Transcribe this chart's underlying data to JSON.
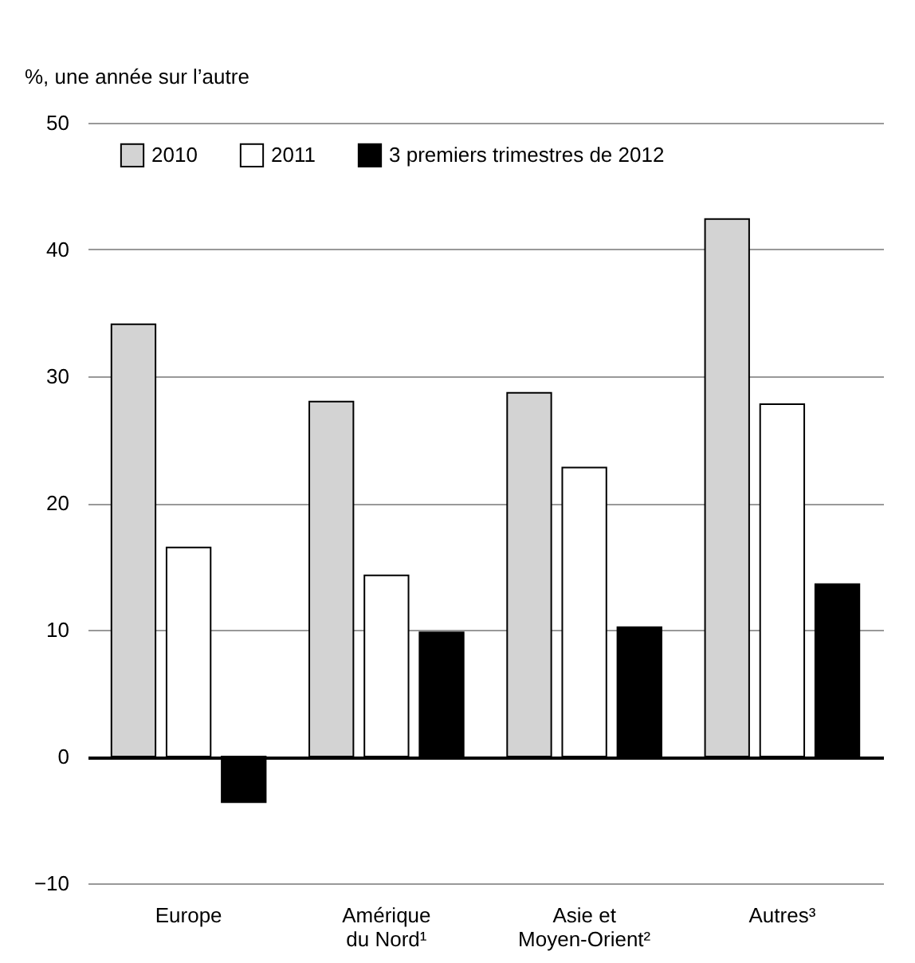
{
  "chart_data": {
    "type": "bar",
    "ylabel": "%, une année sur l’autre",
    "categories": [
      "Europe",
      "Amérique\ndu Nord¹",
      "Asie et\nMoyen-Orient²",
      "Autres³"
    ],
    "series": [
      {
        "name": "2010",
        "color": "#d3d3d3",
        "values": [
          34.1,
          28.0,
          28.7,
          42.4
        ]
      },
      {
        "name": "2011",
        "color": "#ffffff",
        "values": [
          16.5,
          14.3,
          22.8,
          27.8
        ]
      },
      {
        "name": "3 premiers trimestres de 2012",
        "color": "#000000",
        "values": [
          -3.6,
          9.8,
          10.2,
          13.6
        ]
      }
    ],
    "ylim": [
      -10,
      50
    ],
    "yticks": [
      -10,
      0,
      10,
      20,
      30,
      40,
      50
    ],
    "grid": "y",
    "legend": "top"
  }
}
